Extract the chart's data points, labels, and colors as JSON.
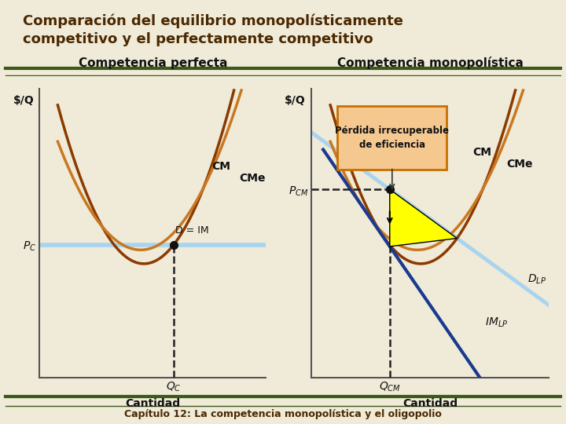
{
  "bg_color": "#f0ead8",
  "title_line1": "Comparación del equilibrio monopolísticamente",
  "title_line2": "competitivo y el perfectamente competitivo",
  "title_color": "#4a2800",
  "title_fontsize": 13,
  "subtitle_left": "Competencia perfecta",
  "subtitle_right": "Competencia monopolística",
  "subtitle_fontsize": 11,
  "footer": "Capítulo 12: La competencia monopolística y el oligopolio",
  "footer_fontsize": 9,
  "border_color_thick": "#3a5a1a",
  "border_color_thin": "#3a5a1a",
  "curve_cm_color": "#8b3a00",
  "curve_cme_color": "#c87820",
  "demand_pc_color": "#a8d4f0",
  "dlp_color": "#a8d4f0",
  "imlp_color": "#1a3a90",
  "dashed_color": "#222222",
  "dot_color": "#111111",
  "highlight_color": "#ffff00",
  "ann_box_fill": "#f5c890",
  "ann_box_edge": "#c87000",
  "text_color": "#111111",
  "label_color": "#111111",
  "ylabel": "$/Q",
  "xlabel": "Cantidad"
}
